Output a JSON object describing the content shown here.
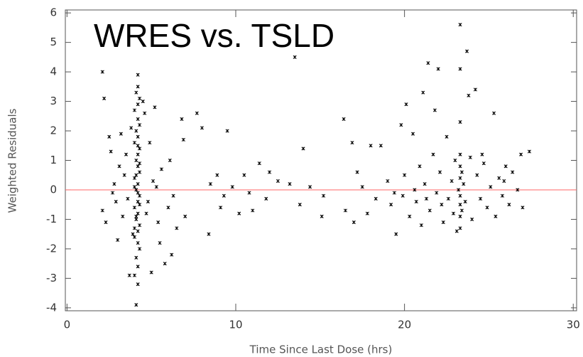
{
  "chart_data": {
    "type": "scatter",
    "title": "WRES vs. TSLD",
    "x_label": "Time Since Last Dose (hrs)",
    "y_label": "Weighted Residuals",
    "color": "#000000",
    "xlim": [
      -0.1,
      30.2
    ],
    "ylim": [
      -4.1,
      6.1
    ],
    "xticks": [
      0,
      10,
      20,
      30
    ],
    "yticks": [
      -4,
      -3,
      -2,
      -1,
      0,
      1,
      2,
      3,
      4,
      5,
      6
    ],
    "reference_line": {
      "value": 0,
      "color": "#ff6666"
    },
    "x": [
      4.2,
      4.1,
      4.3,
      4.2,
      4.0,
      4.2,
      4.3,
      4.1,
      4.2,
      4.0,
      4.3,
      4.2,
      4.1,
      4.2,
      4.3,
      4.0,
      4.2,
      4.1,
      4.3,
      4.2,
      4.0,
      4.2,
      4.1,
      4.3,
      4.2,
      4.0,
      4.2,
      4.3,
      4.1,
      4.2,
      4.0,
      4.2,
      4.1,
      4.2,
      4.3,
      4.1,
      4.0,
      4.2,
      4.3,
      4.1,
      4.2,
      4.0,
      2.1,
      2.2,
      2.3,
      2.1,
      2.5,
      2.6,
      2.8,
      2.9,
      3.0,
      3.1,
      3.3,
      3.4,
      3.5,
      3.6,
      3.7,
      3.8,
      3.9,
      4.6,
      4.7,
      4.9,
      5.0,
      5.1,
      5.2,
      5.4,
      5.6,
      5.8,
      6.0,
      6.1,
      6.3,
      6.5,
      6.8,
      6.9,
      7.0,
      4.8,
      5.3,
      2.7,
      3.2,
      5.5,
      6.2,
      4.5,
      7.7,
      8.0,
      8.4,
      8.5,
      8.9,
      9.1,
      9.5,
      9.8,
      10.2,
      10.5,
      11.0,
      11.4,
      11.8,
      12.5,
      13.2,
      13.5,
      14.0,
      14.4,
      15.1,
      15.2,
      9.3,
      10.8,
      12.0,
      13.8,
      16.4,
      16.5,
      16.9,
      17.0,
      17.2,
      17.5,
      17.8,
      18.0,
      18.3,
      18.6,
      19.0,
      19.2,
      19.5,
      19.8,
      19.9,
      20.0,
      20.1,
      20.3,
      20.5,
      20.7,
      20.9,
      21.0,
      21.1,
      21.2,
      21.4,
      21.5,
      21.7,
      21.8,
      21.9,
      22.0,
      22.1,
      22.3,
      22.5,
      22.6,
      22.8,
      22.9,
      23.0,
      23.1,
      23.2,
      23.3,
      23.3,
      23.3,
      23.3,
      23.3,
      23.3,
      23.3,
      23.3,
      23.3,
      23.3,
      23.4,
      23.4,
      23.5,
      23.6,
      23.7,
      23.8,
      23.9,
      24.0,
      24.2,
      24.3,
      24.5,
      24.7,
      24.9,
      25.1,
      25.3,
      25.4,
      25.6,
      25.8,
      26.0,
      26.2,
      26.4,
      26.7,
      27.0,
      27.4,
      26.9,
      22.2,
      24.6,
      25.9,
      20.6,
      19.4,
      21.3
    ],
    "values": [
      3.5,
      3.3,
      3.1,
      2.9,
      2.7,
      2.4,
      2.2,
      2.0,
      1.8,
      1.6,
      1.4,
      1.2,
      1.0,
      0.8,
      0.6,
      0.4,
      0.2,
      0.0,
      -0.2,
      -0.4,
      -0.6,
      -0.8,
      -1.0,
      -1.2,
      -1.4,
      -1.6,
      -1.8,
      -2.0,
      -2.3,
      -2.6,
      -2.9,
      -3.2,
      -3.9,
      3.9,
      0.9,
      0.5,
      0.1,
      -0.1,
      -0.5,
      -0.9,
      1.5,
      -1.3,
      4.0,
      3.1,
      -1.1,
      -0.7,
      1.8,
      1.3,
      0.2,
      -0.4,
      -1.7,
      0.8,
      -0.9,
      0.5,
      1.2,
      -0.3,
      -2.9,
      2.1,
      -1.5,
      2.6,
      -0.8,
      1.6,
      -2.8,
      0.3,
      2.8,
      -1.1,
      0.7,
      -2.5,
      -0.6,
      1.0,
      -0.2,
      -1.3,
      2.4,
      1.7,
      -0.9,
      -0.4,
      0.1,
      -0.1,
      1.9,
      -1.8,
      -2.2,
      3.0,
      2.6,
      2.1,
      -1.5,
      0.2,
      0.5,
      -0.6,
      2.0,
      0.1,
      -0.8,
      0.5,
      -0.7,
      0.9,
      -0.3,
      0.3,
      0.2,
      4.5,
      1.4,
      0.1,
      -0.9,
      -0.2,
      -0.2,
      -0.1,
      0.6,
      -0.5,
      2.4,
      -0.7,
      1.6,
      -1.1,
      0.6,
      0.1,
      -0.8,
      1.5,
      -0.3,
      1.5,
      0.3,
      -0.5,
      -1.5,
      2.2,
      -0.2,
      0.5,
      2.9,
      -0.9,
      1.9,
      -0.4,
      0.8,
      -1.2,
      3.3,
      0.2,
      4.3,
      -0.7,
      1.2,
      2.7,
      -0.1,
      4.1,
      0.6,
      -1.1,
      1.8,
      -0.3,
      0.3,
      -0.8,
      1.0,
      -1.4,
      0.0,
      5.6,
      4.1,
      2.3,
      1.2,
      0.8,
      0.4,
      -0.2,
      -0.5,
      -0.9,
      -1.3,
      0.6,
      -0.7,
      0.2,
      -0.4,
      4.7,
      3.2,
      1.1,
      -1.0,
      3.4,
      0.5,
      -0.3,
      0.9,
      -0.6,
      0.1,
      2.6,
      -0.9,
      0.4,
      -0.2,
      0.8,
      -0.5,
      0.6,
      0.0,
      -0.6,
      1.3,
      1.2,
      -0.5,
      1.2,
      0.3,
      0.0,
      -0.1,
      -0.3
    ]
  }
}
